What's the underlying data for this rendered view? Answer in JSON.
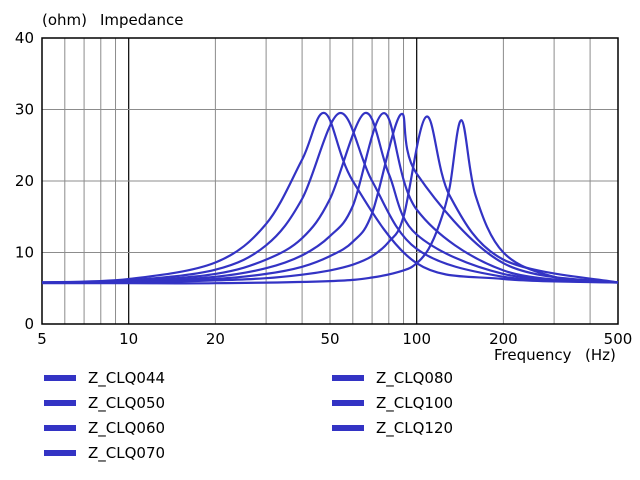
{
  "chart_data": {
    "type": "line",
    "ylabel_unit": "(ohm)",
    "ylabel": "Impedance",
    "xlabel": "Frequency",
    "xlabel_unit": "(Hz)",
    "xscale": "log",
    "xlim": [
      5,
      500
    ],
    "ylim": [
      0,
      40
    ],
    "xticks": [
      5,
      10,
      20,
      50,
      100,
      200,
      500
    ],
    "yticks": [
      0,
      10,
      20,
      30,
      40
    ],
    "grid": true,
    "legend_placement": "below",
    "line_color": "#3333c4",
    "series": [
      {
        "name": "Z_CLQ044",
        "fs": 48,
        "peak": 29.5,
        "x": [
          5,
          10,
          20,
          30,
          40,
          48,
          60,
          100,
          200,
          500
        ],
        "y": [
          5.8,
          6.3,
          8.6,
          14.0,
          23.0,
          29.5,
          20.0,
          8.5,
          6.3,
          5.8
        ]
      },
      {
        "name": "Z_CLQ050",
        "fs": 54,
        "peak": 29.5,
        "x": [
          5,
          10,
          20,
          30,
          40,
          54,
          70,
          100,
          200,
          500
        ],
        "y": [
          5.8,
          6.1,
          7.6,
          11.0,
          17.5,
          29.5,
          20.0,
          10.5,
          6.6,
          5.8
        ]
      },
      {
        "name": "Z_CLQ060",
        "fs": 66,
        "peak": 29.5,
        "x": [
          5,
          10,
          20,
          30,
          40,
          50,
          66,
          80,
          100,
          200,
          500
        ],
        "y": [
          5.8,
          6.0,
          7.0,
          9.0,
          12.0,
          17.5,
          29.5,
          21.0,
          12.5,
          7.0,
          5.8
        ]
      },
      {
        "name": "Z_CLQ070",
        "fs": 77,
        "peak": 29.5,
        "x": [
          5,
          10,
          20,
          30,
          40,
          50,
          60,
          77,
          100,
          200,
          500
        ],
        "y": [
          5.8,
          5.9,
          6.6,
          7.8,
          9.6,
          12.3,
          16.5,
          29.5,
          16.0,
          7.5,
          5.8
        ]
      },
      {
        "name": "Z_CLQ080",
        "fs": 88,
        "peak": 29.3,
        "x": [
          5,
          10,
          20,
          30,
          40,
          50,
          60,
          70,
          88,
          100,
          200,
          500
        ],
        "y": [
          5.8,
          5.9,
          6.3,
          7.0,
          8.0,
          9.5,
          11.5,
          15.5,
          29.3,
          21.0,
          8.5,
          5.8
        ]
      },
      {
        "name": "Z_CLQ100",
        "fs": 108,
        "peak": 29.0,
        "x": [
          5,
          10,
          20,
          30,
          40,
          50,
          60,
          70,
          80,
          90,
          108,
          130,
          200,
          500
        ],
        "y": [
          5.8,
          5.8,
          6.1,
          6.4,
          6.9,
          7.5,
          8.3,
          9.5,
          11.5,
          15.0,
          29.0,
          18.0,
          9.0,
          5.8
        ]
      },
      {
        "name": "Z_CLQ120",
        "fs": 143,
        "peak": 28.5,
        "x": [
          5,
          10,
          20,
          50,
          70,
          90,
          100,
          110,
          120,
          130,
          143,
          160,
          200,
          300,
          500
        ],
        "y": [
          5.7,
          5.7,
          5.7,
          6.0,
          6.5,
          7.5,
          8.5,
          10.5,
          14.0,
          19.0,
          28.5,
          18.0,
          10.0,
          6.6,
          5.8
        ]
      }
    ]
  }
}
